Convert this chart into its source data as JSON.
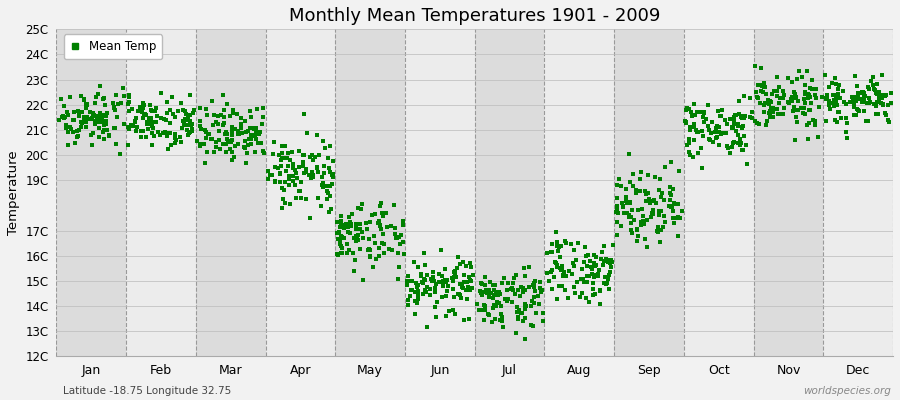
{
  "title": "Monthly Mean Temperatures 1901 - 2009",
  "ylabel": "Temperature",
  "subtitle": "Latitude -18.75 Longitude 32.75",
  "watermark": "worldspecies.org",
  "legend_label": "Mean Temp",
  "dot_color": "#008000",
  "bg_color": "#f2f2f2",
  "plot_bg_color_dark": "#dcdcdc",
  "plot_bg_color_light": "#ececec",
  "dot_size": 6,
  "ylim": [
    12,
    25
  ],
  "ytick_labels": [
    "12C",
    "13C",
    "14C",
    "15C",
    "16C",
    "17C",
    "19C",
    "20C",
    "21C",
    "22C",
    "23C",
    "24C",
    "25C"
  ],
  "ytick_values": [
    12,
    13,
    14,
    15,
    16,
    17,
    19,
    20,
    21,
    22,
    23,
    24,
    25
  ],
  "month_labels": [
    "Jan",
    "Feb",
    "Mar",
    "Apr",
    "May",
    "Jun",
    "Jul",
    "Aug",
    "Sep",
    "Oct",
    "Nov",
    "Dec"
  ],
  "month_positions": [
    0.5,
    1.5,
    2.5,
    3.5,
    4.5,
    5.5,
    6.5,
    7.5,
    8.5,
    9.5,
    10.5,
    11.5
  ],
  "months_means": [
    21.5,
    21.4,
    20.9,
    19.3,
    16.8,
    14.8,
    14.3,
    15.4,
    18.1,
    21.0,
    22.1,
    22.1
  ],
  "months_stds": [
    0.55,
    0.52,
    0.58,
    0.65,
    0.72,
    0.58,
    0.55,
    0.65,
    0.72,
    0.6,
    0.58,
    0.5
  ],
  "n_years": 109,
  "seed": 123,
  "xlim": [
    0,
    12
  ],
  "vline_positions": [
    0,
    1,
    2,
    3,
    4,
    5,
    6,
    7,
    8,
    9,
    10,
    11,
    12
  ]
}
